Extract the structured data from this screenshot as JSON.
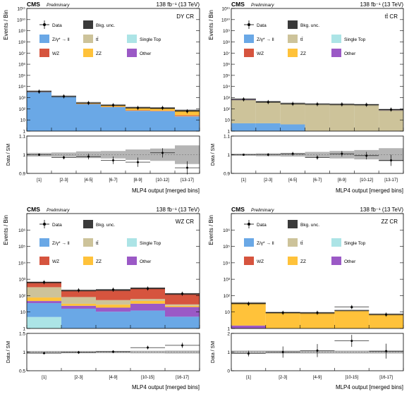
{
  "colors": {
    "bkg_unc": "#3a3a3a",
    "dy": "#6aa8e6",
    "ttbar": "#cdc39a",
    "singletop": "#ace4e6",
    "wz": "#d6543e",
    "zz": "#ffc23a",
    "other": "#9b59c6",
    "ratio_band": "#b5b5b5"
  },
  "legend_labels": {
    "data": "Data",
    "bkg_unc": "Bkg. unc.",
    "dy": "Z/γ* → ll",
    "ttbar": "tt̄",
    "singletop": "Single Top",
    "wz": "WZ",
    "zz": "ZZ",
    "other": "Other"
  },
  "common": {
    "cms": "CMS",
    "preliminary": "Preliminary",
    "ylabel_top": "Events / Bin",
    "ylabel_ratio": "Data / SM"
  },
  "chart_data": [
    {
      "type": "bar",
      "region": "DY CR",
      "lumi": "138 fb⁻¹ (13 TeV)",
      "xlabel": "MLP4 output [merged bins]",
      "categories": [
        "[1]",
        "[2-3]",
        "[4-5]",
        "[6-7]",
        "[8-9]",
        "[10-12]",
        "[13-17]"
      ],
      "ylim_log": [
        1,
        100000000000.0
      ],
      "yticks": [
        "1",
        "10",
        "10²",
        "10³",
        "10⁴",
        "10⁵",
        "10⁶",
        "10⁷",
        "10⁸",
        "10⁹",
        "10¹⁰",
        "10¹¹"
      ],
      "series": [
        {
          "name": "Z/γ* → ll",
          "color_key": "dy",
          "values": [
            3000,
            1200,
            260,
            140,
            65,
            60,
            20
          ]
        },
        {
          "name": "tt̄",
          "color_key": "ttbar",
          "values": [
            100,
            5,
            3,
            2,
            2,
            2,
            2
          ]
        },
        {
          "name": "WZ",
          "color_key": "wz",
          "values": [
            80,
            30,
            12,
            8,
            6,
            5,
            4
          ]
        },
        {
          "name": "ZZ",
          "color_key": "zz",
          "values": [
            80,
            40,
            60,
            60,
            55,
            45,
            45
          ]
        },
        {
          "name": "Single Top",
          "color_key": "singletop",
          "values": [
            15,
            1.5,
            0.3,
            0.2,
            0.2,
            0.2,
            0.2
          ]
        },
        {
          "name": "Other",
          "color_key": "other",
          "values": [
            400,
            1.5,
            0.3,
            0.2,
            0.2,
            0.2,
            0.2
          ]
        }
      ],
      "data": [
        3500,
        1300,
        330,
        210,
        120,
        120,
        60
      ],
      "ratio": {
        "ylim": [
          0.9,
          1.1
        ],
        "yticks": [
          "0.9",
          "1",
          "1.1"
        ],
        "values": [
          1.0,
          0.985,
          0.99,
          0.97,
          0.96,
          1.01,
          0.93
        ],
        "errors": [
          0.005,
          0.01,
          0.015,
          0.02,
          0.025,
          0.025,
          0.035
        ],
        "band": [
          0.01,
          0.012,
          0.018,
          0.02,
          0.028,
          0.033,
          0.05
        ]
      }
    },
    {
      "type": "bar",
      "region": "tt̄ CR",
      "lumi": "138 fb⁻¹ (13 TeV)",
      "xlabel": "MLP4 output [merged bins]",
      "categories": [
        "[1]",
        "[2-3]",
        "[4-5]",
        "[6-7]",
        "[8-9]",
        "[10-12]",
        "[13-17]"
      ],
      "ylim_log": [
        1,
        100000000000.0
      ],
      "yticks": [
        "1",
        "10",
        "10²",
        "10³",
        "10⁴",
        "10⁵",
        "10⁶",
        "10⁷",
        "10⁸",
        "10⁹",
        "10¹⁰",
        "10¹¹"
      ],
      "series": [
        {
          "name": "Z/γ* → ll",
          "color_key": "dy",
          "values": [
            5,
            5,
            4,
            0.3,
            0.2,
            0.2,
            0.2
          ]
        },
        {
          "name": "tt̄",
          "color_key": "ttbar",
          "values": [
            600,
            380,
            270,
            250,
            240,
            220,
            75
          ]
        },
        {
          "name": "WZ",
          "color_key": "wz",
          "values": [
            3,
            7,
            3,
            3,
            0.3,
            0.2,
            0.2
          ]
        },
        {
          "name": "ZZ",
          "color_key": "zz",
          "values": [
            6,
            0.3,
            0.2,
            0.2,
            0.2,
            0.2,
            0.2
          ]
        },
        {
          "name": "Single Top",
          "color_key": "singletop",
          "values": [
            10,
            10,
            8,
            3,
            0.3,
            0.2,
            0.2
          ]
        },
        {
          "name": "Other",
          "color_key": "other",
          "values": [
            90,
            25,
            12,
            5,
            5,
            6,
            6
          ]
        }
      ],
      "data": [
        700,
        400,
        280,
        260,
        250,
        230,
        85
      ],
      "ratio": {
        "ylim": [
          0.9,
          1.1
        ],
        "yticks": [
          "0.9",
          "1",
          "1.1"
        ],
        "values": [
          1.0,
          1.0,
          1.005,
          0.985,
          1.005,
          0.995,
          0.97
        ],
        "errors": [
          0.005,
          0.008,
          0.01,
          0.012,
          0.015,
          0.02,
          0.03
        ],
        "band": [
          0.006,
          0.008,
          0.01,
          0.015,
          0.02,
          0.025,
          0.035
        ]
      }
    },
    {
      "type": "bar",
      "region": "WZ CR",
      "lumi": "138 fb⁻¹ (13 TeV)",
      "xlabel": "MLP4 output [merged bins]",
      "categories": [
        "[1]",
        "[2-3]",
        "[4-9]",
        "[10-15]",
        "[16-17]"
      ],
      "ylim_log": [
        1,
        10000000.0
      ],
      "yticks": [
        "1",
        "10",
        "10²",
        "10³",
        "10⁴",
        "10⁵",
        "10⁶",
        "10⁷"
      ],
      "series": [
        {
          "name": "Single Top",
          "color_key": "singletop",
          "values": [
            5,
            1,
            0.5,
            0.3,
            0.2
          ]
        },
        {
          "name": "Z/γ* → ll",
          "color_key": "dy",
          "values": [
            30,
            15,
            10,
            12,
            5
          ]
        },
        {
          "name": "Other",
          "color_key": "other",
          "values": [
            12,
            8,
            8,
            20,
            15
          ]
        },
        {
          "name": "ZZ",
          "color_key": "zz",
          "values": [
            30,
            8,
            10,
            15,
            4
          ]
        },
        {
          "name": "tt̄",
          "color_key": "ttbar",
          "values": [
            250,
            50,
            25,
            15,
            5
          ]
        },
        {
          "name": "WZ",
          "color_key": "wz",
          "values": [
            300,
            120,
            160,
            220,
            95
          ]
        }
      ],
      "data": [
        650,
        210,
        230,
        270,
        130
      ],
      "ratio": {
        "ylim": [
          0.5,
          1.5
        ],
        "yticks": [
          "0.5",
          "1",
          "1.5"
        ],
        "values": [
          0.97,
          0.99,
          1.01,
          1.12,
          1.18
        ],
        "errors": [
          0.02,
          0.04,
          0.04,
          0.05,
          0.07
        ],
        "band": [
          0.03,
          0.03,
          0.03,
          0.035,
          0.04
        ]
      }
    },
    {
      "type": "bar",
      "region": "ZZ CR",
      "lumi": "138 fb⁻¹ (13 TeV)",
      "xlabel": "MLP4 output [merged bins]",
      "categories": [
        "[1]",
        "[2-3]",
        "[4-9]",
        "[10-15]",
        "[16-17]"
      ],
      "ylim_log": [
        1,
        10000000.0
      ],
      "yticks": [
        "1",
        "10",
        "10²",
        "10³",
        "10⁴",
        "10⁵",
        "10⁶",
        "10⁷"
      ],
      "series": [
        {
          "name": "Other",
          "color_key": "other",
          "values": [
            1.5,
            0.05,
            0.05,
            0.05,
            0.05
          ]
        },
        {
          "name": "ZZ",
          "color_key": "zz",
          "values": [
            33,
            9,
            8.5,
            12,
            7
          ]
        },
        {
          "name": "WZ",
          "color_key": "wz",
          "values": [
            0.5,
            0.2,
            0.2,
            0.2,
            0.2
          ]
        }
      ],
      "data": [
        32,
        9,
        9,
        20,
        7
      ],
      "ratio": {
        "ylim": [
          0,
          2
        ],
        "yticks": [
          "0",
          "1",
          "2"
        ],
        "values": [
          0.92,
          1.0,
          1.08,
          1.6,
          1.05
        ],
        "errors": [
          0.15,
          0.3,
          0.35,
          0.32,
          0.4
        ],
        "band": [
          0.08,
          0.08,
          0.08,
          0.08,
          0.08
        ]
      }
    }
  ]
}
